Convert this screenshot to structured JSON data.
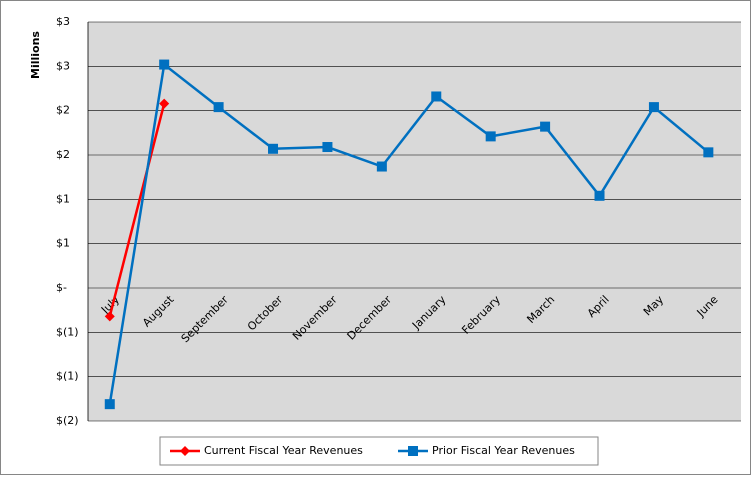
{
  "chart_data": {
    "type": "line",
    "y_label": "Millions",
    "categories": [
      "July",
      "August",
      "September",
      "October",
      "November",
      "December",
      "January",
      "February",
      "March",
      "April",
      "May",
      "June"
    ],
    "series": [
      {
        "name": "Current Fiscal Year Revenues",
        "color": "#ff0000",
        "marker": "diamond",
        "values": [
          -0.32,
          2.08,
          null,
          null,
          null,
          null,
          null,
          null,
          null,
          null,
          null,
          null
        ]
      },
      {
        "name": "Prior Fiscal Year Revenues",
        "color": "#0070c0",
        "marker": "square",
        "values": [
          -1.31,
          2.52,
          2.04,
          1.57,
          1.59,
          1.37,
          2.16,
          1.71,
          1.82,
          1.04,
          2.04,
          1.53
        ]
      }
    ],
    "ylim": [
      -1.5,
      3
    ],
    "yticks": [
      {
        "value": -1.5,
        "label": "$(2)"
      },
      {
        "value": -1,
        "label": "$(1)"
      },
      {
        "value": -0.5,
        "label": "$(1)"
      },
      {
        "value": 0,
        "label": "$-"
      },
      {
        "value": 0.5,
        "label": "$1"
      },
      {
        "value": 1,
        "label": "$1"
      },
      {
        "value": 1.5,
        "label": "$2"
      },
      {
        "value": 2,
        "label": "$2"
      },
      {
        "value": 2.5,
        "label": "$3"
      },
      {
        "value": 3,
        "label": "$3"
      }
    ],
    "grid": true,
    "legend": "bottom"
  }
}
